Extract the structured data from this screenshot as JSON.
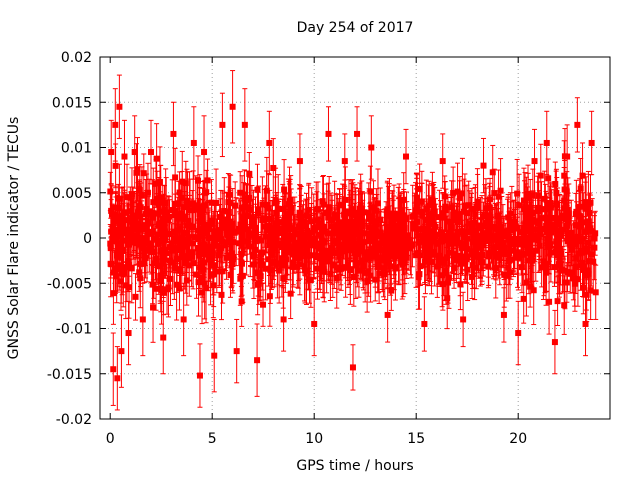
{
  "chart_data": {
    "type": "scatter",
    "title": "Day 254 of 2017",
    "xlabel": "GPS time / hours",
    "ylabel": "GNSS Solar Flare indicator / TECUs",
    "xlim": [
      -0.5,
      24.5
    ],
    "ylim": [
      -0.02,
      0.02
    ],
    "x_ticks": [
      0,
      5,
      10,
      15,
      20
    ],
    "y_ticks": [
      -0.02,
      -0.015,
      -0.01,
      -0.005,
      0,
      0.005,
      0.01,
      0.015,
      0.02
    ],
    "x_tick_labels": [
      "0",
      "5",
      "10",
      "15",
      "20"
    ],
    "y_tick_labels": [
      "-0.02",
      "-0.015",
      "-0.01",
      "-0.005",
      "0",
      "0.005",
      "0.01",
      "0.015",
      "0.02"
    ],
    "grid": true,
    "color": "#ff0000",
    "marker": "filled-square",
    "error_bars": true,
    "series": [
      {
        "points": [
          {
            "x": 0.05,
            "y": 0.0095,
            "err": 0.0035
          },
          {
            "x": 0.15,
            "y": -0.0145,
            "err": 0.004
          },
          {
            "x": 0.25,
            "y": 0.0125,
            "err": 0.004
          },
          {
            "x": 0.35,
            "y": -0.0155,
            "err": 0.0035
          },
          {
            "x": 0.45,
            "y": 0.0145,
            "err": 0.0035
          },
          {
            "x": 0.55,
            "y": -0.0125,
            "err": 0.004
          },
          {
            "x": 0.7,
            "y": 0.009,
            "err": 0.004
          },
          {
            "x": 0.9,
            "y": -0.0105,
            "err": 0.0035
          },
          {
            "x": 1.2,
            "y": 0.0095,
            "err": 0.004
          },
          {
            "x": 1.6,
            "y": -0.009,
            "err": 0.004
          },
          {
            "x": 2.0,
            "y": 0.0095,
            "err": 0.0035
          },
          {
            "x": 2.6,
            "y": -0.011,
            "err": 0.004
          },
          {
            "x": 3.1,
            "y": 0.0115,
            "err": 0.0035
          },
          {
            "x": 3.6,
            "y": -0.009,
            "err": 0.004
          },
          {
            "x": 4.1,
            "y": 0.0105,
            "err": 0.004
          },
          {
            "x": 4.4,
            "y": -0.0152,
            "err": 0.0035
          },
          {
            "x": 4.6,
            "y": 0.0095,
            "err": 0.004
          },
          {
            "x": 5.1,
            "y": -0.013,
            "err": 0.004
          },
          {
            "x": 5.5,
            "y": 0.0125,
            "err": 0.0035
          },
          {
            "x": 6.0,
            "y": 0.0145,
            "err": 0.004
          },
          {
            "x": 6.2,
            "y": -0.0125,
            "err": 0.0035
          },
          {
            "x": 6.6,
            "y": 0.0125,
            "err": 0.004
          },
          {
            "x": 7.2,
            "y": -0.0135,
            "err": 0.004
          },
          {
            "x": 7.8,
            "y": 0.0105,
            "err": 0.0035
          },
          {
            "x": 8.5,
            "y": -0.009,
            "err": 0.0035
          },
          {
            "x": 9.3,
            "y": 0.0085,
            "err": 0.003
          },
          {
            "x": 10.0,
            "y": -0.0095,
            "err": 0.0035
          },
          {
            "x": 10.7,
            "y": 0.0115,
            "err": 0.003
          },
          {
            "x": 11.5,
            "y": 0.0085,
            "err": 0.003
          },
          {
            "x": 11.9,
            "y": -0.0143,
            "err": 0.0025
          },
          {
            "x": 12.1,
            "y": 0.0115,
            "err": 0.003
          },
          {
            "x": 12.8,
            "y": 0.01,
            "err": 0.0035
          },
          {
            "x": 13.6,
            "y": -0.0085,
            "err": 0.003
          },
          {
            "x": 14.5,
            "y": 0.009,
            "err": 0.003
          },
          {
            "x": 15.4,
            "y": -0.0095,
            "err": 0.003
          },
          {
            "x": 16.3,
            "y": 0.0085,
            "err": 0.003
          },
          {
            "x": 17.3,
            "y": -0.009,
            "err": 0.003
          },
          {
            "x": 18.3,
            "y": 0.008,
            "err": 0.003
          },
          {
            "x": 19.3,
            "y": -0.0085,
            "err": 0.003
          },
          {
            "x": 20.0,
            "y": -0.0105,
            "err": 0.0035
          },
          {
            "x": 20.8,
            "y": 0.0085,
            "err": 0.0035
          },
          {
            "x": 21.4,
            "y": 0.0105,
            "err": 0.0035
          },
          {
            "x": 21.8,
            "y": -0.0115,
            "err": 0.0035
          },
          {
            "x": 22.4,
            "y": 0.009,
            "err": 0.0035
          },
          {
            "x": 22.9,
            "y": 0.0125,
            "err": 0.003
          },
          {
            "x": 23.3,
            "y": -0.0095,
            "err": 0.0035
          },
          {
            "x": 23.6,
            "y": 0.0105,
            "err": 0.0035
          },
          {
            "x": 23.8,
            "y": -0.006,
            "err": 0.003
          }
        ],
        "dense_band": {
          "x_start": 0.0,
          "x_end": 23.8,
          "approx_count": 1400,
          "typical_abs_y": 0.005,
          "typical_err": 0.003
        }
      }
    ]
  }
}
